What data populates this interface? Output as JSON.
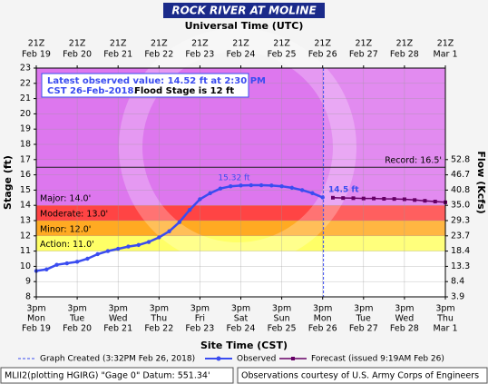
{
  "chart_data": {
    "type": "line",
    "title": "ROCK RIVER AT MOLINE",
    "x2_title": "Universal Time (UTC)",
    "x_title": "Site Time (CST)",
    "y_title": "Stage (ft)",
    "y2_title": "Flow (Kcfs)",
    "xlim": [
      0,
      10
    ],
    "xticks": [
      {
        "value": 0,
        "label": "3pm"
      },
      {
        "value": 1,
        "label": "3pm"
      },
      {
        "value": 2,
        "label": "3pm"
      },
      {
        "value": 3,
        "label": "3pm"
      },
      {
        "value": 4,
        "label": "3pm"
      },
      {
        "value": 5,
        "label": "3pm"
      },
      {
        "value": 6,
        "label": "3pm"
      },
      {
        "value": 7,
        "label": "3pm"
      },
      {
        "value": 8,
        "label": "3pm"
      },
      {
        "value": 9,
        "label": "3pm"
      },
      {
        "value": 10,
        "label": "3pm"
      }
    ],
    "x2ticks": [
      {
        "value": 0,
        "label": "21Z"
      },
      {
        "value": 1,
        "label": "21Z"
      },
      {
        "value": 2,
        "label": "21Z"
      },
      {
        "value": 3,
        "label": "21Z"
      },
      {
        "value": 4,
        "label": "21Z"
      },
      {
        "value": 5,
        "label": "21Z"
      },
      {
        "value": 6,
        "label": "21Z"
      },
      {
        "value": 7,
        "label": "21Z"
      },
      {
        "value": 8,
        "label": "21Z"
      },
      {
        "value": 9,
        "label": "21Z"
      },
      {
        "value": 10,
        "label": "21Z"
      }
    ],
    "x_weekdays": [
      "Mon",
      "Tue",
      "Wed",
      "Thu",
      "Fri",
      "Sat",
      "Sun",
      "Mon",
      "Tue",
      "Wed",
      "Thu"
    ],
    "x_dates": [
      "Feb 19",
      "Feb 20",
      "Feb 21",
      "Feb 22",
      "Feb 23",
      "Feb 24",
      "Feb 25",
      "Feb 26",
      "Feb 27",
      "Feb 28",
      "Mar 1"
    ],
    "ylim": [
      8,
      23
    ],
    "yticks": [
      8,
      9,
      10,
      11,
      12,
      13,
      14,
      15,
      16,
      17,
      18,
      19,
      20,
      21,
      22,
      23
    ],
    "y2ticks": [
      3.9,
      8.4,
      13.3,
      18.4,
      23.7,
      29.3,
      {
        "value": 35,
        "label": "35.0"
      },
      40.8,
      46.7,
      52.8
    ],
    "y2tick_stages": [
      8,
      9,
      10,
      11,
      12,
      13,
      14,
      15,
      16,
      17
    ],
    "grid": true,
    "flood_categories": [
      {
        "label": "Action: 11.0'",
        "stage": 11,
        "color": "#ffff66"
      },
      {
        "label": "Minor: 12.0'",
        "stage": 12,
        "color": "#ffaa22"
      },
      {
        "label": "Moderate: 13.0'",
        "stage": 13,
        "color": "#ff4444"
      },
      {
        "label": "Major: 14.0'",
        "stage": 14,
        "color": "#dd77ee"
      }
    ],
    "record": {
      "label": "Record: 16.5'",
      "stage": 16.5
    },
    "series": [
      {
        "name": "Observed",
        "color": "#3a4cf0",
        "marker": "circle",
        "x": [
          0,
          0.25,
          0.5,
          0.75,
          1,
          1.25,
          1.5,
          1.75,
          2,
          2.25,
          2.5,
          2.75,
          3,
          3.25,
          3.5,
          3.75,
          4,
          4.25,
          4.5,
          4.75,
          5,
          5.25,
          5.5,
          5.75,
          6,
          6.25,
          6.5,
          6.75,
          7
        ],
        "values": [
          9.7,
          9.8,
          10.1,
          10.2,
          10.3,
          10.5,
          10.8,
          11.0,
          11.15,
          11.3,
          11.4,
          11.6,
          11.9,
          12.3,
          12.9,
          13.7,
          14.4,
          14.8,
          15.1,
          15.25,
          15.3,
          15.32,
          15.32,
          15.3,
          15.25,
          15.15,
          15.0,
          14.8,
          14.52
        ]
      },
      {
        "name": "Forecast (issued 9:19AM Feb 26)",
        "color": "#660066",
        "marker": "square",
        "x": [
          7.25,
          7.5,
          7.75,
          8,
          8.25,
          8.5,
          8.75,
          9,
          9.25,
          9.5,
          9.75,
          10
        ],
        "values": [
          14.5,
          14.48,
          14.47,
          14.45,
          14.45,
          14.43,
          14.42,
          14.4,
          14.35,
          14.3,
          14.25,
          14.2
        ]
      }
    ],
    "graph_created": {
      "name": "Graph Created (3:32PM Feb 26, 2018)",
      "x": 7.02
    },
    "annotations": [
      "15.32 ft",
      "14.5 ft"
    ],
    "info": {
      "line1": "Latest observed value: 14.52 ft at 2:30 PM",
      "line2": "CST 26-Feb-2018.",
      "flood_stage": "Flood Stage is 12 ft"
    },
    "footer": {
      "left": "MLII2(plotting HGIRG) \"Gage 0\" Datum: 551.34'",
      "right": "Observations courtesy of U.S. Army Corps of Engineers"
    }
  }
}
